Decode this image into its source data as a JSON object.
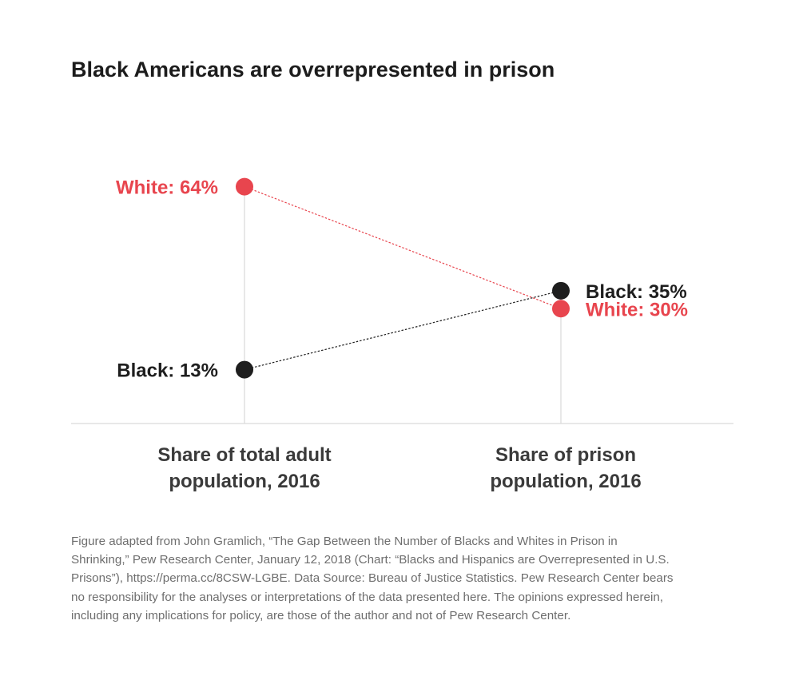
{
  "chart_data": {
    "type": "slope",
    "title": "Black Americans are overrepresented in prison",
    "categories": [
      [
        "Share of total adult",
        "population, 2016"
      ],
      [
        "Share of prison",
        "population, 2016"
      ]
    ],
    "unit": "%",
    "series": [
      {
        "name": "White",
        "values": [
          64,
          30
        ],
        "labels": [
          "White: 64%",
          "White: 30%"
        ],
        "color": "#e8454e"
      },
      {
        "name": "Black",
        "values": [
          13,
          35
        ],
        "labels": [
          "Black: 13%",
          "Black: 35%"
        ],
        "color": "#1e1e1e"
      }
    ],
    "axis_color": "#d9d9d9"
  },
  "footnote": [
    "Figure adapted from John Gramlich, “The Gap Between the Number of Blacks and Whites in Prison in",
    "Shrinking,” Pew Research Center, January 12, 2018 (Chart: “Blacks and Hispanics are Overrepresented in U.S.",
    "Prisons”), https://perma.cc/8CSW-LGBE. Data Source: Bureau of Justice Statistics. Pew Research Center bears",
    "no responsibility for the analyses or interpretations of the data presented here. The opinions expressed herein,",
    "including any implications for policy, are those of the author and not of Pew Research Center."
  ]
}
